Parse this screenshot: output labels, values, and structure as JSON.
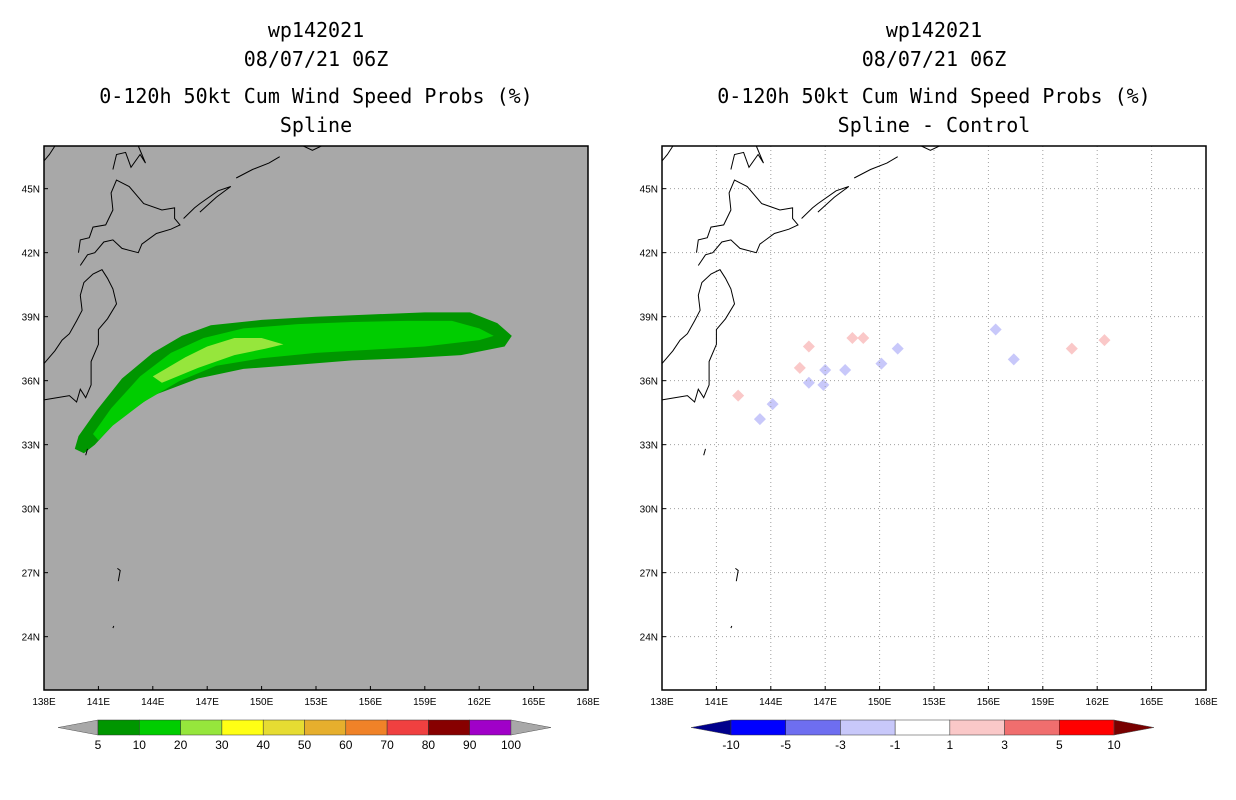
{
  "chart_data": [
    {
      "type": "heatmap",
      "panel": "left",
      "title_lines": [
        "wp142021",
        "08/07/21 06Z",
        "0-120h 50kt Cum Wind Speed Probs (%)",
        "Spline"
      ],
      "x_ticks": [
        "138E",
        "141E",
        "144E",
        "147E",
        "150E",
        "153E",
        "156E",
        "159E",
        "162E",
        "165E",
        "168E"
      ],
      "y_ticks": [
        "24N",
        "27N",
        "30N",
        "33N",
        "36N",
        "39N",
        "42N",
        "45N"
      ],
      "xlim": [
        138,
        168
      ],
      "ylim": [
        21.5,
        47
      ],
      "background": "#a8a8a8",
      "grid": false,
      "contour_levels": [
        {
          "min": 5,
          "color": "#009600",
          "polygon": [
            [
              139.9,
              33.4
            ],
            [
              140.9,
              34.6
            ],
            [
              142.3,
              36.1
            ],
            [
              144.0,
              37.3
            ],
            [
              145.6,
              38.1
            ],
            [
              147.2,
              38.6
            ],
            [
              150,
              38.85
            ],
            [
              153,
              39.0
            ],
            [
              156,
              39.1
            ],
            [
              159,
              39.2
            ],
            [
              161.5,
              39.2
            ],
            [
              163,
              38.7
            ],
            [
              163.8,
              38.1
            ],
            [
              163.4,
              37.6
            ],
            [
              161,
              37.2
            ],
            [
              158,
              37.05
            ],
            [
              155,
              36.95
            ],
            [
              152,
              36.75
            ],
            [
              149,
              36.55
            ],
            [
              146.5,
              36.1
            ],
            [
              144,
              35.3
            ],
            [
              142,
              34.1
            ],
            [
              140.8,
              33.0
            ],
            [
              140.2,
              32.6
            ],
            [
              139.7,
              32.8
            ]
          ]
        },
        {
          "min": 10,
          "color": "#00cd00",
          "polygon": [
            [
              140.7,
              33.5
            ],
            [
              141.7,
              34.7
            ],
            [
              143.3,
              36.2
            ],
            [
              145.0,
              37.3
            ],
            [
              146.8,
              38.0
            ],
            [
              149,
              38.45
            ],
            [
              152,
              38.65
            ],
            [
              155,
              38.75
            ],
            [
              158,
              38.8
            ],
            [
              160.5,
              38.8
            ],
            [
              162,
              38.45
            ],
            [
              162.8,
              38.1
            ],
            [
              162,
              37.9
            ],
            [
              159,
              37.6
            ],
            [
              156,
              37.45
            ],
            [
              153,
              37.3
            ],
            [
              150,
              37.05
            ],
            [
              147.5,
              36.7
            ],
            [
              145.5,
              36.0
            ],
            [
              143.5,
              35.0
            ],
            [
              141.8,
              33.9
            ],
            [
              141.0,
              33.2
            ]
          ]
        },
        {
          "min": 20,
          "color": "#96e63c",
          "polygon": [
            [
              144.0,
              36.2
            ],
            [
              145.8,
              37.1
            ],
            [
              147.0,
              37.6
            ],
            [
              148.5,
              38.0
            ],
            [
              150.0,
              38.0
            ],
            [
              151.2,
              37.7
            ],
            [
              150.2,
              37.5
            ],
            [
              148.5,
              37.2
            ],
            [
              146.5,
              36.6
            ],
            [
              144.5,
              35.9
            ]
          ]
        }
      ],
      "colorbar": {
        "labels": [
          "5",
          "10",
          "20",
          "30",
          "40",
          "50",
          "60",
          "70",
          "80",
          "90",
          "100"
        ],
        "colors": [
          "#a8a8a8",
          "#009600",
          "#00cd00",
          "#96e63c",
          "#ffff14",
          "#e6dc32",
          "#e6af2d",
          "#f08228",
          "#f04040",
          "#870000",
          "#a000c8",
          "#a8a8a8"
        ]
      }
    },
    {
      "type": "heatmap",
      "panel": "right",
      "title_lines": [
        "wp142021",
        "08/07/21 06Z",
        "0-120h 50kt Cum Wind Speed Probs (%)",
        "Spline - Control"
      ],
      "x_ticks": [
        "138E",
        "141E",
        "144E",
        "147E",
        "150E",
        "153E",
        "156E",
        "159E",
        "162E",
        "165E",
        "168E"
      ],
      "y_ticks": [
        "24N",
        "27N",
        "30N",
        "33N",
        "36N",
        "39N",
        "42N",
        "45N"
      ],
      "xlim": [
        138,
        168
      ],
      "ylim": [
        21.5,
        47
      ],
      "background": "#ffffff",
      "grid": true,
      "patches": [
        {
          "sign": "positive",
          "lon": 142.2,
          "lat": 35.3
        },
        {
          "sign": "positive",
          "lon": 146.1,
          "lat": 37.6
        },
        {
          "sign": "positive",
          "lon": 145.6,
          "lat": 36.6
        },
        {
          "sign": "positive",
          "lon": 148.5,
          "lat": 38.0
        },
        {
          "sign": "positive",
          "lon": 149.1,
          "lat": 38.0
        },
        {
          "sign": "positive",
          "lon": 160.6,
          "lat": 37.5
        },
        {
          "sign": "positive",
          "lon": 162.4,
          "lat": 37.9
        },
        {
          "sign": "negative",
          "lon": 143.4,
          "lat": 34.2
        },
        {
          "sign": "negative",
          "lon": 144.1,
          "lat": 34.9
        },
        {
          "sign": "negative",
          "lon": 146.1,
          "lat": 35.9
        },
        {
          "sign": "negative",
          "lon": 147.0,
          "lat": 36.5
        },
        {
          "sign": "negative",
          "lon": 146.9,
          "lat": 35.8
        },
        {
          "sign": "negative",
          "lon": 148.1,
          "lat": 36.5
        },
        {
          "sign": "negative",
          "lon": 150.1,
          "lat": 36.8
        },
        {
          "sign": "negative",
          "lon": 151.0,
          "lat": 37.5
        },
        {
          "sign": "negative",
          "lon": 156.4,
          "lat": 38.4
        },
        {
          "sign": "negative",
          "lon": 157.4,
          "lat": 37.0
        }
      ],
      "colorbar": {
        "labels": [
          "-10",
          "-5",
          "-3",
          "-1",
          "1",
          "3",
          "5",
          "10"
        ],
        "colors": [
          "#00008c",
          "#0000ff",
          "#6e6ef0",
          "#c8c8fa",
          "#ffffff",
          "#fac8c8",
          "#f06e6e",
          "#ff0000",
          "#780000"
        ]
      }
    }
  ]
}
